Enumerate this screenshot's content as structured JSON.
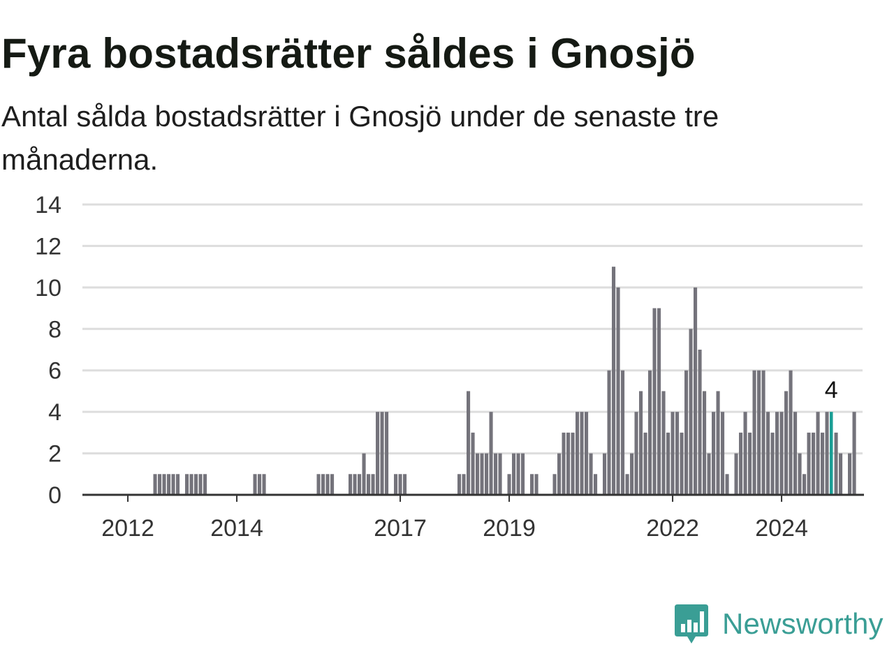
{
  "header": {
    "title": "Fyra bostadsrätter såldes i Gnosjö",
    "subtitle": "Antal sålda bostadsrätter i Gnosjö under de senaste tre månaderna."
  },
  "brand": {
    "name": "Newsworthy",
    "icon": "newsworthy-bar-chart-bubble-icon",
    "color": "#3a9e95"
  },
  "colors": {
    "bar": "#74737b",
    "highlight": "#1a9e95",
    "grid": "#dddddd",
    "axis": "#333333"
  },
  "chart_data": {
    "type": "bar",
    "title": "Fyra bostadsrätter såldes i Gnosjö",
    "subtitle": "Antal sålda bostadsrätter i Gnosjö under de senaste tre månaderna.",
    "xlabel": "",
    "ylabel": "",
    "ylim": [
      0,
      14
    ],
    "yticks": [
      0,
      2,
      4,
      6,
      8,
      10,
      12,
      14
    ],
    "grid": true,
    "x_start": "2011-06",
    "x_ticks": [
      {
        "label": "2012",
        "month_index": 7
      },
      {
        "label": "2014",
        "month_index": 31
      },
      {
        "label": "2017",
        "month_index": 67
      },
      {
        "label": "2019",
        "month_index": 91
      },
      {
        "label": "2022",
        "month_index": 127
      },
      {
        "label": "2024",
        "month_index": 151
      }
    ],
    "values": [
      0,
      0,
      0,
      0,
      0,
      0,
      0,
      0,
      0,
      0,
      0,
      0,
      0,
      1,
      1,
      1,
      1,
      1,
      1,
      0,
      1,
      1,
      1,
      1,
      1,
      0,
      0,
      0,
      0,
      0,
      0,
      0,
      0,
      0,
      0,
      1,
      1,
      1,
      0,
      0,
      0,
      0,
      0,
      0,
      0,
      0,
      0,
      0,
      0,
      1,
      1,
      1,
      1,
      0,
      0,
      0,
      1,
      1,
      1,
      2,
      1,
      1,
      4,
      4,
      4,
      0,
      1,
      1,
      1,
      0,
      0,
      0,
      0,
      0,
      0,
      0,
      0,
      0,
      0,
      0,
      1,
      1,
      5,
      3,
      2,
      2,
      2,
      4,
      2,
      2,
      0,
      1,
      2,
      2,
      2,
      0,
      1,
      1,
      0,
      0,
      0,
      1,
      2,
      3,
      3,
      3,
      4,
      4,
      4,
      2,
      1,
      0,
      2,
      6,
      11,
      10,
      6,
      1,
      2,
      4,
      5,
      3,
      6,
      9,
      9,
      5,
      3,
      4,
      4,
      3,
      6,
      8,
      10,
      7,
      5,
      2,
      4,
      5,
      4,
      1,
      0,
      2,
      3,
      4,
      3,
      6,
      6,
      6,
      4,
      3,
      4,
      4,
      5,
      6,
      4,
      2,
      1,
      3,
      3,
      4,
      3,
      4,
      4,
      3,
      2,
      0,
      2,
      4
    ],
    "highlight": {
      "index": 162,
      "value": 4,
      "label": "4"
    }
  }
}
